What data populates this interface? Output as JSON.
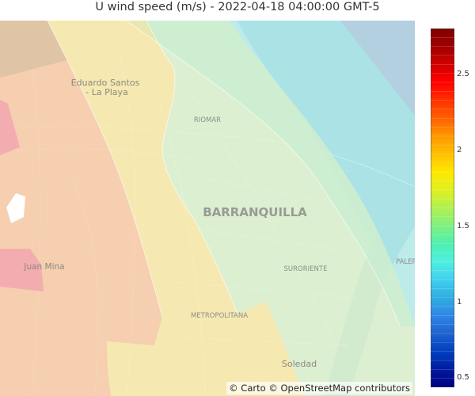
{
  "title": "U wind speed (m/s) - 2022-04-18 04:00:00 GMT-5",
  "map": {
    "place_labels": {
      "city": "BARRANQUILLA",
      "riomar": "RIOMAR",
      "eduardo_santos_line1": "Eduardo Santos",
      "eduardo_santos_line2": "- La Playa",
      "juan_mina": "Juan Mina",
      "suroriente": "SURORIENTE",
      "metropolitana": "METROPOLITANA",
      "soledad": "Soledad",
      "palermo": "PALERMO"
    },
    "attribution": "© Carto © OpenStreetMap contributors",
    "zone_colors": {
      "pink": "#f2a7b0",
      "salmon": "#f6c49c",
      "yellow": "#f7e69f",
      "light_green": "#d4efc9",
      "cyan": "#8fe9ef",
      "blue_gray": "#9ec9e4",
      "tan": "#d9c0a2"
    }
  },
  "colorbar": {
    "min": 0.44,
    "max": 2.8,
    "ticks": [
      "0.5",
      "1",
      "1.5",
      "2",
      "2.5"
    ],
    "tick_values": [
      0.5,
      1,
      1.5,
      2,
      2.5
    ],
    "colors": [
      "#000080",
      "#001ba0",
      "#0040c0",
      "#1f63d0",
      "#2e86e6",
      "#30aedf",
      "#40d0f0",
      "#4fefe0",
      "#4ff0b0",
      "#7ff080",
      "#b0f050",
      "#e0f020",
      "#ffe800",
      "#ffc000",
      "#ff9800",
      "#ff6000",
      "#ff3000",
      "#ff0000",
      "#d00000",
      "#a00000",
      "#800000"
    ]
  }
}
